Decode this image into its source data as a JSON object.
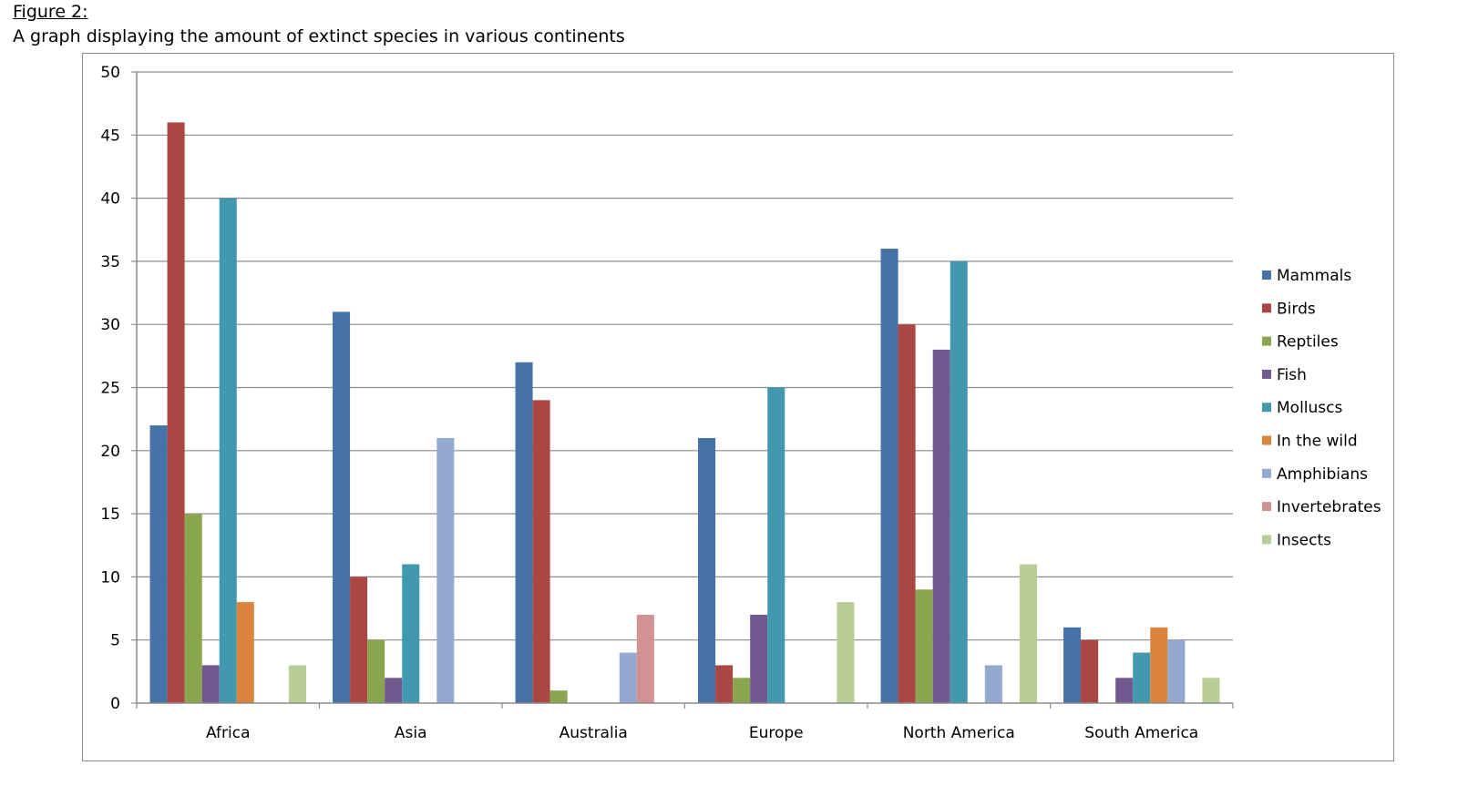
{
  "figure": {
    "label": "Figure 2:",
    "caption": "A graph displaying the amount of extinct species in various continents"
  },
  "chart_data": {
    "type": "bar",
    "title": "",
    "xlabel": "",
    "ylabel": "",
    "ylim": [
      0,
      50
    ],
    "yticks": [
      0,
      5,
      10,
      15,
      20,
      25,
      30,
      35,
      40,
      45,
      50
    ],
    "grid": true,
    "legend_position": "right",
    "categories": [
      "Africa",
      "Asia",
      "Australia",
      "Europe",
      "North America",
      "South America"
    ],
    "series": [
      {
        "name": "Mammals",
        "color": "#4572A7",
        "values": [
          22,
          31,
          27,
          21,
          36,
          6
        ]
      },
      {
        "name": "Birds",
        "color": "#AA4643",
        "values": [
          46,
          10,
          24,
          3,
          30,
          5
        ]
      },
      {
        "name": "Reptiles",
        "color": "#89A54E",
        "values": [
          15,
          5,
          1,
          2,
          9,
          0
        ]
      },
      {
        "name": "Fish",
        "color": "#71588F",
        "values": [
          3,
          2,
          0,
          7,
          28,
          2
        ]
      },
      {
        "name": "Molluscs",
        "color": "#4198AF",
        "values": [
          40,
          11,
          0,
          25,
          35,
          4
        ]
      },
      {
        "name": "In the wild",
        "color": "#DB843D",
        "values": [
          8,
          0,
          0,
          0,
          0,
          6
        ]
      },
      {
        "name": "Amphibians",
        "color": "#93A9CF",
        "values": [
          0,
          21,
          4,
          0,
          3,
          5
        ]
      },
      {
        "name": "Invertebrates",
        "color": "#D19392",
        "values": [
          0,
          0,
          7,
          0,
          0,
          0
        ]
      },
      {
        "name": "Insects",
        "color": "#B9CD96",
        "values": [
          3,
          0,
          0,
          8,
          11,
          2
        ]
      }
    ]
  }
}
